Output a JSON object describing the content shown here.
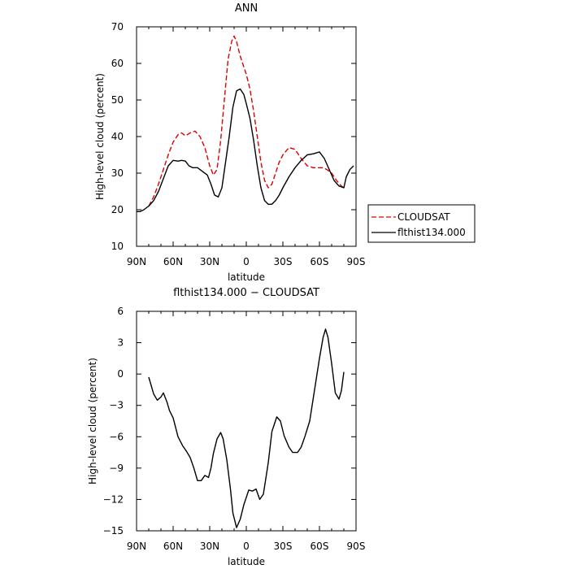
{
  "chart_data": [
    {
      "type": "line",
      "title": "ANN",
      "xlabel": "latitude",
      "ylabel": "High-level cloud (percent)",
      "xlim": [
        -90,
        90
      ],
      "ylim": [
        10,
        70
      ],
      "x_direction": "north-to-south",
      "x_ticks": [
        -90,
        -60,
        -30,
        0,
        30,
        60,
        90
      ],
      "x_tick_labels": [
        "90N",
        "60N",
        "30N",
        "0",
        "30S",
        "60S",
        "90S"
      ],
      "y_ticks": [
        10,
        20,
        30,
        40,
        50,
        60,
        70
      ],
      "y_tick_labels": [
        "10",
        "20",
        "30",
        "40",
        "50",
        "60",
        "70"
      ],
      "grid": false,
      "legend": {
        "placement": "right-outside"
      },
      "series": [
        {
          "name": "CLOUDSAT",
          "color": "#dd0000",
          "dash": "dashed",
          "x": [
            -80,
            -76,
            -72,
            -68,
            -64,
            -60,
            -56,
            -53,
            -50,
            -46,
            -42,
            -38,
            -34,
            -30,
            -27,
            -24,
            -21,
            -18,
            -15,
            -12,
            -10,
            -8,
            -5,
            -2,
            0,
            3,
            6,
            9,
            12,
            15,
            18,
            21,
            24,
            27,
            30,
            35,
            40,
            45,
            50,
            55,
            60,
            63,
            66,
            70,
            74,
            78,
            80
          ],
          "y": [
            21,
            23.5,
            27,
            31,
            35,
            38.5,
            40.5,
            41,
            40.2,
            41,
            41.5,
            40,
            37,
            32,
            29.5,
            31,
            39,
            50,
            61,
            66,
            67.5,
            66,
            62,
            59,
            57,
            53,
            47,
            40,
            33,
            28,
            26,
            27,
            30,
            33,
            35,
            37,
            36.5,
            34,
            32,
            31.5,
            31.5,
            31.5,
            31,
            30,
            28,
            26.5,
            26
          ]
        },
        {
          "name": "flthist134.000",
          "color": "#000000",
          "dash": "solid",
          "x": [
            -90,
            -87,
            -84,
            -80,
            -76,
            -72,
            -68,
            -64,
            -60,
            -56,
            -53,
            -50,
            -47,
            -44,
            -40,
            -36,
            -32,
            -29,
            -26,
            -23,
            -20,
            -17,
            -14,
            -11,
            -8,
            -5,
            -2,
            0,
            3,
            6,
            9,
            12,
            15,
            18,
            21,
            24,
            27,
            30,
            35,
            40,
            45,
            50,
            55,
            60,
            64,
            68,
            72,
            76,
            80,
            82,
            85,
            88
          ],
          "y": [
            19.5,
            19.5,
            20,
            21,
            22.5,
            25,
            28.5,
            32,
            33.5,
            33.3,
            33.5,
            33.3,
            32,
            31.5,
            31.5,
            30.5,
            29.5,
            27,
            24,
            23.5,
            26,
            33,
            40,
            48,
            52.5,
            53,
            51.5,
            49,
            45,
            39,
            32,
            26,
            22.5,
            21.5,
            21.5,
            22.5,
            24,
            26,
            29,
            31.5,
            33.5,
            35,
            35.3,
            35.8,
            34,
            31,
            28,
            26.5,
            26,
            29,
            31,
            32
          ]
        }
      ]
    },
    {
      "type": "line",
      "title": "flthist134.000 − CLOUDSAT",
      "xlabel": "latitude",
      "ylabel": "High-level cloud (percent)",
      "xlim": [
        -90,
        90
      ],
      "ylim": [
        -15,
        6
      ],
      "x_direction": "north-to-south",
      "x_ticks": [
        -90,
        -60,
        -30,
        0,
        30,
        60,
        90
      ],
      "x_tick_labels": [
        "90N",
        "60N",
        "30N",
        "0",
        "30S",
        "60S",
        "90S"
      ],
      "y_ticks": [
        -15,
        -12,
        -9,
        -6,
        -3,
        0,
        3,
        6
      ],
      "y_tick_labels": [
        "−15",
        "−12",
        "−9",
        "−6",
        "−3",
        "0",
        "3",
        "6"
      ],
      "grid": false,
      "series": [
        {
          "color": "#000000",
          "dash": "solid",
          "x": [
            -80,
            -76,
            -73,
            -70,
            -68,
            -65,
            -63,
            -60,
            -56,
            -52,
            -49,
            -46,
            -43,
            -40,
            -37,
            -34,
            -31,
            -29,
            -27,
            -24,
            -21,
            -19,
            -16,
            -13,
            -11,
            -8,
            -5,
            -2,
            2,
            5,
            8,
            11,
            14,
            18,
            21,
            25,
            28,
            31,
            35,
            38,
            42,
            45,
            48,
            52,
            56,
            60,
            63,
            65,
            67,
            70,
            73,
            76,
            78,
            80
          ],
          "y": [
            -0.3,
            -1.9,
            -2.5,
            -2.2,
            -1.8,
            -2.7,
            -3.5,
            -4.2,
            -6.0,
            -6.9,
            -7.4,
            -8.0,
            -9.0,
            -10.2,
            -10.2,
            -9.7,
            -9.9,
            -9.0,
            -7.6,
            -6.2,
            -5.6,
            -6.2,
            -8.2,
            -11.0,
            -13.3,
            -14.7,
            -13.9,
            -12.5,
            -11.1,
            -11.2,
            -11.0,
            -12.0,
            -11.5,
            -8.5,
            -5.5,
            -4.1,
            -4.5,
            -5.9,
            -7.0,
            -7.5,
            -7.5,
            -7.0,
            -6.0,
            -4.5,
            -1.5,
            1.5,
            3.5,
            4.3,
            3.5,
            1.0,
            -1.8,
            -2.4,
            -1.6,
            0.2
          ]
        }
      ]
    }
  ]
}
